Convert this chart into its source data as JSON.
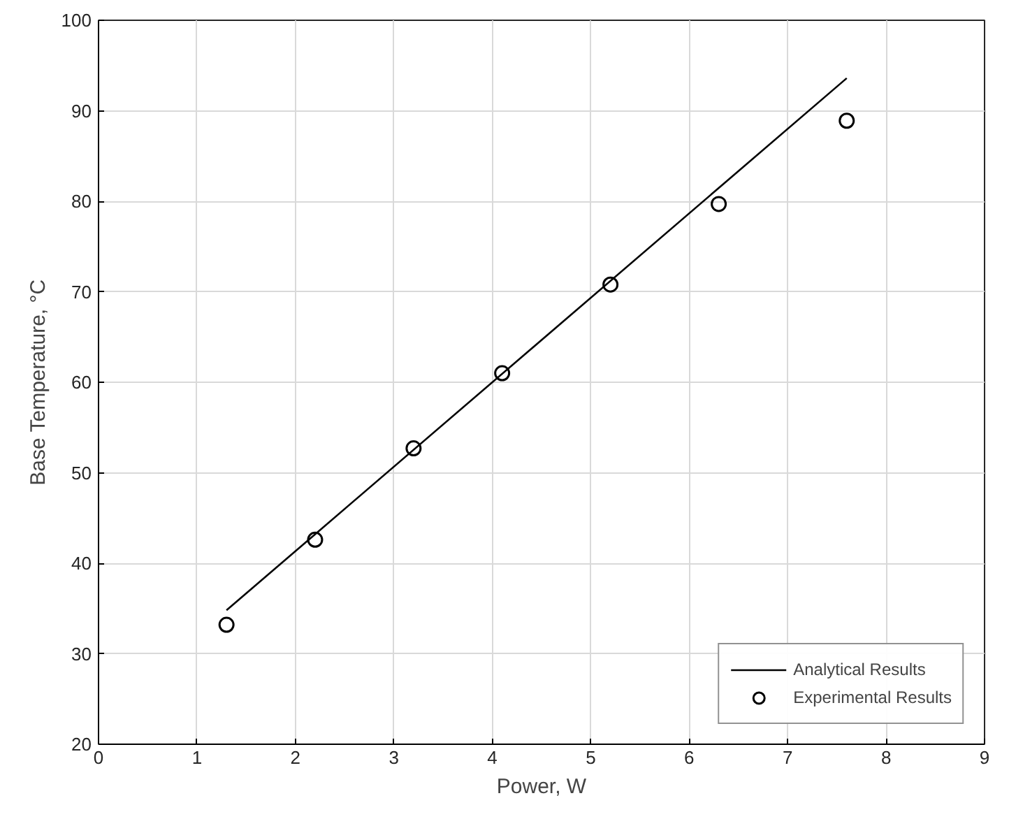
{
  "chart_data": {
    "type": "line",
    "xlabel": "Power, W",
    "ylabel": "Base Temperature, °C",
    "xlim": [
      0,
      9
    ],
    "ylim": [
      20,
      100
    ],
    "xticks": [
      0,
      1,
      2,
      3,
      4,
      5,
      6,
      7,
      8,
      9
    ],
    "yticks": [
      20,
      30,
      40,
      50,
      60,
      70,
      80,
      90,
      100
    ],
    "grid": true,
    "legend": "bottom right",
    "series": [
      {
        "name": "Analytical Results",
        "color": "#000000",
        "x": [
          1.3,
          7.6
        ],
        "values": [
          34.8,
          93.6
        ],
        "marker": "none",
        "line_style": "solid"
      },
      {
        "name": "Experimental Results",
        "type": "scatter",
        "color": "#000000",
        "x": [
          1.3,
          2.2,
          3.2,
          4.1,
          5.2,
          6.3,
          7.6
        ],
        "values": [
          33.2,
          42.6,
          52.7,
          61.0,
          70.8,
          79.7,
          88.9
        ],
        "marker": "circle"
      }
    ]
  }
}
